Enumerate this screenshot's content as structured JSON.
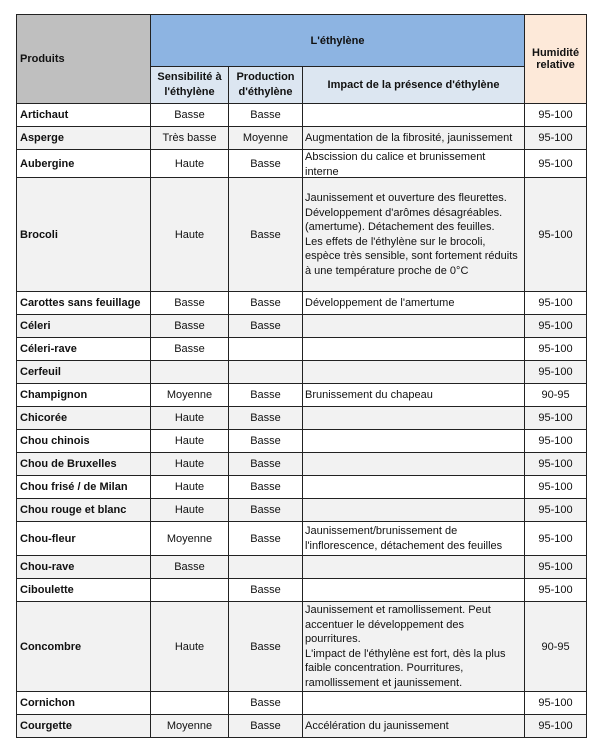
{
  "header": {
    "produits": "Produits",
    "ethylene": "L'éthylène",
    "sensibilite": "Sensibilité à l'éthylène",
    "production": "Production d'éthylène",
    "impact": "Impact de la présence d'éthylène",
    "humidite": "Humidité relative"
  },
  "colors": {
    "produits_header": "#bfbfbf",
    "ethylene_header": "#8db4e2",
    "sub_header": "#dce6f1",
    "humidite_header": "#fde9d9",
    "alt_row": "#f2f2f2"
  },
  "rows": [
    {
      "produit": "Artichaut",
      "sensibilite": "Basse",
      "production": "Basse",
      "impact": "",
      "humidite": "95-100"
    },
    {
      "produit": "Asperge",
      "sensibilite": "Très basse",
      "production": "Moyenne",
      "impact": "Augmentation de la fibrosité, jaunissement",
      "humidite": "95-100"
    },
    {
      "produit": "Aubergine",
      "sensibilite": "Haute",
      "production": "Basse",
      "impact": "Abscission du calice et brunissement interne",
      "humidite": "95-100"
    },
    {
      "produit": "Brocoli",
      "sensibilite": "Haute",
      "production": "Basse",
      "impact": "Jaunissement et ouverture des fleurettes. Développement d'arômes désagréables. (amertume). Détachement des feuilles.\nLes effets de l'éthylène sur le brocoli, espèce très sensible, sont fortement réduits à une température proche de 0°C",
      "humidite": "95-100"
    },
    {
      "produit": "Carottes sans feuillage",
      "sensibilite": "Basse",
      "production": "Basse",
      "impact": "Développement de l'amertume",
      "humidite": "95-100"
    },
    {
      "produit": "Céleri",
      "sensibilite": "Basse",
      "production": "Basse",
      "impact": "",
      "humidite": "95-100"
    },
    {
      "produit": "Céleri-rave",
      "sensibilite": "Basse",
      "production": "",
      "impact": "",
      "humidite": "95-100"
    },
    {
      "produit": "Cerfeuil",
      "sensibilite": "",
      "production": "",
      "impact": "",
      "humidite": "95-100"
    },
    {
      "produit": "Champignon",
      "sensibilite": "Moyenne",
      "production": "Basse",
      "impact": "Brunissement du chapeau",
      "humidite": "90-95"
    },
    {
      "produit": "Chicorée",
      "sensibilite": "Haute",
      "production": "Basse",
      "impact": "",
      "humidite": "95-100"
    },
    {
      "produit": "Chou chinois",
      "sensibilite": "Haute",
      "production": "Basse",
      "impact": "",
      "humidite": "95-100"
    },
    {
      "produit": "Chou de Bruxelles",
      "sensibilite": "Haute",
      "production": "Basse",
      "impact": "",
      "humidite": "95-100"
    },
    {
      "produit": "Chou frisé / de Milan",
      "sensibilite": "Haute",
      "production": "Basse",
      "impact": "",
      "humidite": "95-100"
    },
    {
      "produit": "Chou rouge et blanc",
      "sensibilite": "Haute",
      "production": "Basse",
      "impact": "",
      "humidite": "95-100"
    },
    {
      "produit": "Chou-fleur",
      "sensibilite": "Moyenne",
      "production": "Basse",
      "impact": "Jaunissement/brunissement de l'inflorescence, détachement des feuilles",
      "humidite": "95-100"
    },
    {
      "produit": "Chou-rave",
      "sensibilite": "Basse",
      "production": "",
      "impact": "",
      "humidite": "95-100"
    },
    {
      "produit": "Ciboulette",
      "sensibilite": "",
      "production": "Basse",
      "impact": "",
      "humidite": "95-100"
    },
    {
      "produit": "Concombre",
      "sensibilite": "Haute",
      "production": "Basse",
      "impact": "Jaunissement et ramollissement. Peut accentuer le développement des pourritures.\nL'impact de l'éthylène est fort, dès la plus faible concentration. Pourritures, ramollissement et jaunissement.",
      "humidite": "90-95"
    },
    {
      "produit": "Cornichon",
      "sensibilite": "",
      "production": "Basse",
      "impact": "",
      "humidite": "95-100"
    },
    {
      "produit": "Courgette",
      "sensibilite": "Moyenne",
      "production": "Basse",
      "impact": "Accélération du jaunissement",
      "humidite": "95-100"
    }
  ]
}
